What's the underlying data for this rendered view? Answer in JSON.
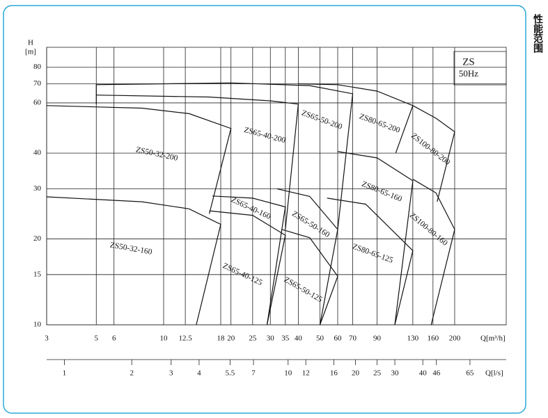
{
  "chart_data": {
    "type": "line",
    "side_title": "性能范围",
    "annotations": [
      "ZS",
      "50Hz"
    ],
    "ylabel": "H",
    "yunit": "[m]",
    "xlabel": "Q[m³/h]",
    "x2label": "Q[l/s]",
    "xscale": "log",
    "yscale": "log",
    "grid": true,
    "xlim": [
      3,
      340
    ],
    "ylim": [
      10,
      94
    ],
    "x2lim": [
      0.833,
      94.4
    ],
    "xticks": [
      3,
      5,
      6,
      10,
      12.5,
      18,
      20,
      25,
      30,
      35,
      40,
      50,
      60,
      70,
      90,
      130,
      160,
      200
    ],
    "yticks": [
      10,
      15,
      20,
      30,
      40,
      60,
      70,
      80
    ],
    "x2ticks": [
      1,
      2,
      3,
      4,
      5.5,
      7,
      10,
      12,
      16,
      20,
      25,
      30,
      40,
      46,
      65
    ],
    "series": [
      {
        "name": "ZS50-32-200",
        "color": "#111111",
        "x": [
          3,
          8,
          13,
          20,
          16
        ],
        "values": [
          58.7,
          57.5,
          55,
          48.8,
          24.5
        ]
      },
      {
        "name": "ZS50-32-160",
        "color": "#111111",
        "x": [
          3,
          8,
          13,
          18,
          14
        ],
        "values": [
          28.1,
          27,
          25.5,
          22.5,
          10
        ]
      },
      {
        "name": "ZS65-40-200",
        "color": "#111111",
        "x": [
          5,
          16,
          30,
          40,
          35
        ],
        "values": [
          63.9,
          62.9,
          61,
          59.4,
          21.6
        ]
      },
      {
        "name": "ZS65-50-200",
        "color": "#111111",
        "x": [
          5,
          5,
          20,
          45,
          70,
          60
        ],
        "values": [
          59.2,
          69.5,
          70.5,
          69,
          64.6,
          21.6
        ]
      },
      {
        "name": "ZS80-65-200",
        "color": "#111111",
        "x": [
          40,
          60,
          90,
          130,
          109
        ],
        "values": [
          70,
          69.5,
          66,
          58.7,
          40
        ]
      },
      {
        "name": "ZS100-80-200",
        "color": "#111111",
        "x": [
          130,
          165,
          200,
          167
        ],
        "values": [
          58.7,
          53,
          47.5,
          27
        ]
      },
      {
        "name": "ZS65-40-160",
        "color": "#111111",
        "x": [
          16.5,
          25,
          35,
          29
        ],
        "values": [
          28.3,
          27.8,
          25.9,
          10
        ]
      },
      {
        "name": "ZS65-40-125",
        "color": "#111111",
        "x": [
          16,
          25,
          35,
          29
        ],
        "values": [
          25.1,
          24.2,
          20.6,
          10
        ]
      },
      {
        "name": "ZS65-50-160",
        "color": "#111111",
        "x": [
          32.1,
          45,
          60,
          50
        ],
        "values": [
          30,
          28.2,
          21.6,
          10
        ]
      },
      {
        "name": "ZS65-50-125",
        "color": "#111111",
        "x": [
          33.8,
          45,
          60,
          50
        ],
        "values": [
          21.6,
          20.2,
          14.8,
          10
        ]
      },
      {
        "name": "ZS80-65-160",
        "color": "#111111",
        "x": [
          60,
          90,
          130,
          108
        ],
        "values": [
          40.5,
          38.5,
          32,
          10
        ]
      },
      {
        "name": "ZS80-65-125",
        "color": "#111111",
        "x": [
          53.8,
          80,
          130,
          108
        ],
        "values": [
          27.8,
          26.5,
          18.2,
          10
        ]
      },
      {
        "name": "ZS100-80-160",
        "color": "#111111",
        "x": [
          130,
          165,
          200,
          157
        ],
        "values": [
          32.4,
          29,
          21.6,
          10
        ]
      }
    ]
  }
}
